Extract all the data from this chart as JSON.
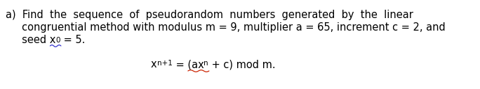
{
  "background_color": "#ffffff",
  "fig_width": 6.84,
  "fig_height": 1.28,
  "dpi": 100,
  "text_color": "#000000",
  "blue_color": "#3333cc",
  "red_color": "#cc2200",
  "font_size": 10.5,
  "sub_font_size": 7.5,
  "line1": "a)  Find  the  sequence  of  pseudorandom  numbers  generated  by  the  linear",
  "line2": "     congruential method with modulus m = 9, multiplier a = 65, increment c = 2, and",
  "line3_a": "     seed x",
  "line3_b": "0",
  "line3_c": " = 5."
}
